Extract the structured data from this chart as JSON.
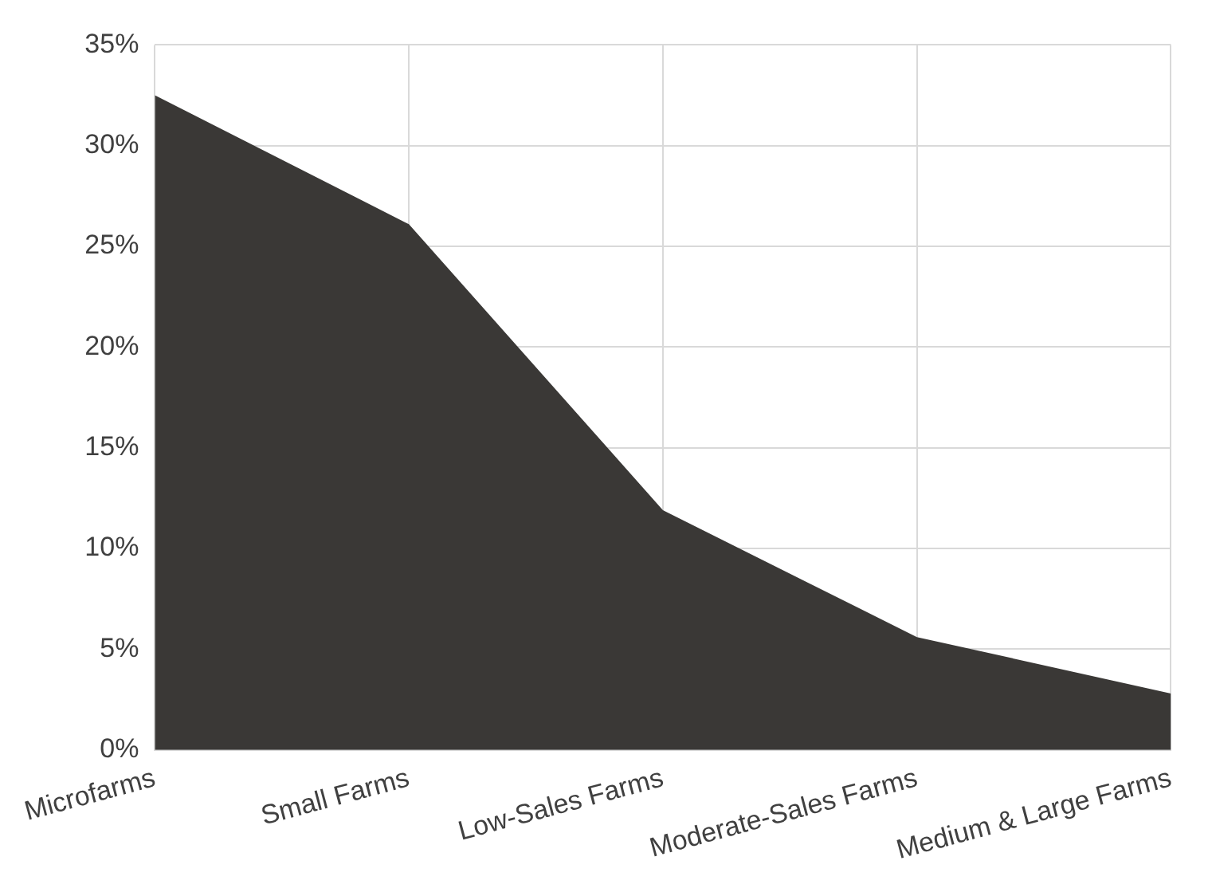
{
  "chart_data": {
    "type": "area",
    "categories": [
      "Microfarms",
      "Small Farms",
      "Low-Sales Farms",
      "Moderate-Sales Farms",
      "Medium & Large Farms"
    ],
    "series": [
      {
        "color": "#3a3836",
        "values": [
          32.5,
          26.1,
          11.9,
          5.6,
          2.8
        ]
      }
    ],
    "ylim": [
      0,
      35
    ],
    "yticks": [
      {
        "value": 0,
        "label": "0%"
      },
      {
        "value": 5,
        "label": "5%"
      },
      {
        "value": 10,
        "label": "10%"
      },
      {
        "value": 15,
        "label": "15%"
      },
      {
        "value": 20,
        "label": "20%"
      },
      {
        "value": 25,
        "label": "25%"
      },
      {
        "value": 30,
        "label": "30%"
      },
      {
        "value": 35,
        "label": "35%"
      }
    ],
    "grid": true,
    "legend": false
  }
}
